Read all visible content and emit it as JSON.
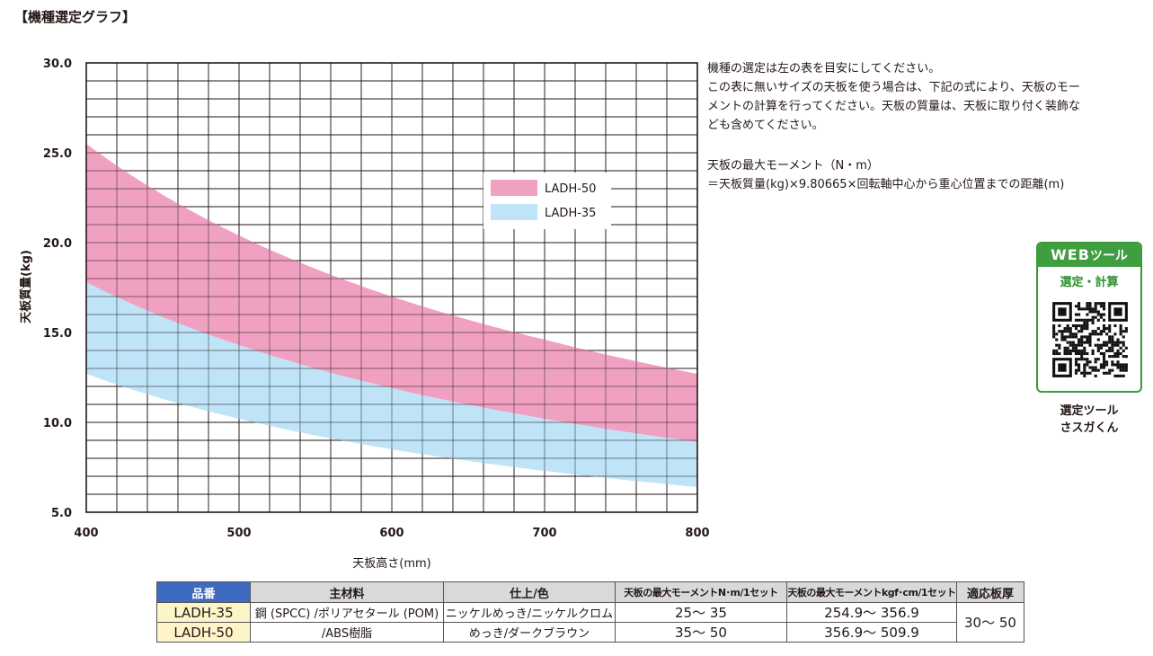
{
  "section_title": "【機種選定グラフ】",
  "description": [
    "機種の選定は左の表を目安にしてください。",
    "この表に無いサイズの天板を使う場合は、下記の式により、天板のモー",
    "メントの計算を行ってください。天板の質量は、天板に取り付く装飾な",
    "ども含めてください。"
  ],
  "formula": [
    "天板の最大モーメント（N・m）",
    "＝天板質量(kg)×9.80665×回転軸中心から重心位置までの距離(m)"
  ],
  "web_tool": {
    "header_strong": "WEB",
    "header_rest": "ツール",
    "subtitle": "選定・計算",
    "caption_line1": "選定ツール",
    "caption_line2": "さスガくん",
    "accent_color": "#3f9e3f",
    "icon": "qr-code-icon"
  },
  "chart_data": {
    "type": "area",
    "title": "",
    "xlabel": "天板高さ(mm)",
    "ylabel": "天板質量(kg)",
    "xlim": [
      400,
      800
    ],
    "ylim": [
      5,
      30
    ],
    "x_ticks": [
      400,
      500,
      600,
      700,
      800
    ],
    "x_tick_labels": [
      "400",
      "500",
      "600",
      "700",
      "800"
    ],
    "y_ticks": [
      5,
      10,
      15,
      20,
      25,
      30
    ],
    "y_tick_labels": [
      "5.0",
      "10.0",
      "15.0",
      "20.0",
      "25.0",
      "30.0"
    ],
    "grid": true,
    "grid_x_step": 20,
    "grid_y_step": 1,
    "legend_position": "top-right",
    "x": [
      400,
      500,
      600,
      700,
      800
    ],
    "series": [
      {
        "name": "LADH-50",
        "color": "#f0a1c2",
        "lower": [
          17.8,
          14.3,
          11.9,
          10.2,
          8.9
        ],
        "upper": [
          25.5,
          20.4,
          17.0,
          14.6,
          12.7
        ]
      },
      {
        "name": "LADH-35",
        "color": "#bfe4f7",
        "lower": [
          12.7,
          10.2,
          8.5,
          7.3,
          6.4
        ],
        "upper": [
          17.8,
          14.3,
          11.9,
          10.2,
          8.9
        ]
      }
    ]
  },
  "table": {
    "headers": [
      "品番",
      "主材料",
      "仕上/色",
      "天板の最大モーメントN･m/1セット",
      "天板の最大モーメントkgf･cm/1セット",
      "適応板厚"
    ],
    "rows": [
      {
        "part": "LADH-35",
        "material": "鋼 (SPCC) /ポリアセタール (POM)",
        "finish": "ニッケルめっき/ニッケルクロム",
        "moment_nm": "25～ 35",
        "moment_kgf": "254.9～ 356.9"
      },
      {
        "part": "LADH-50",
        "material": "/ABS樹脂",
        "finish": "めっき/ダークブラウン",
        "moment_nm": "35～ 50",
        "moment_kgf": "356.9～ 509.9"
      }
    ],
    "thickness": "30～ 50"
  }
}
